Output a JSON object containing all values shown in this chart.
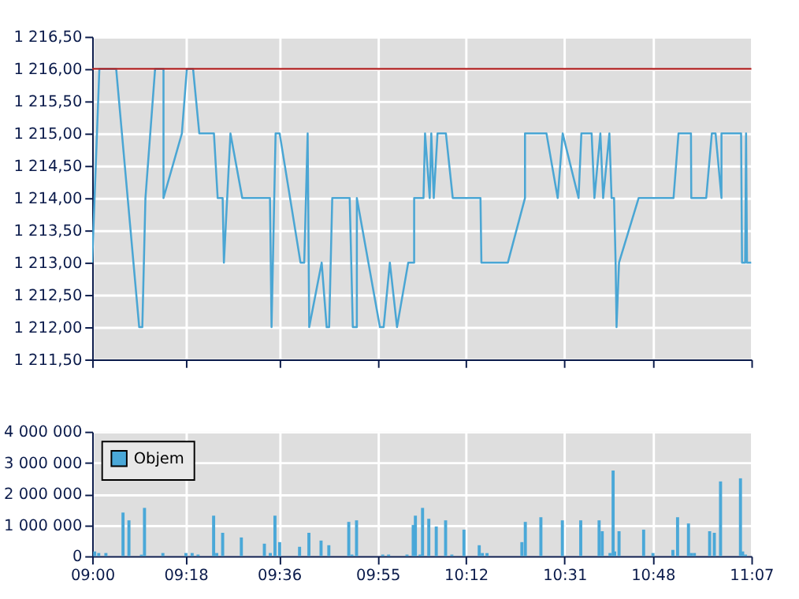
{
  "chart_data": [
    {
      "type": "line",
      "x": [
        9.0,
        9.023,
        9.077,
        9.151,
        9.161,
        9.171,
        9.202,
        9.229,
        9.229,
        9.288,
        9.304,
        9.324,
        9.344,
        9.391,
        9.403,
        9.419,
        9.423,
        9.444,
        9.482,
        9.571,
        9.576,
        9.589,
        9.602,
        9.669,
        9.681,
        9.692,
        9.697,
        9.737,
        9.753,
        9.761,
        9.771,
        9.827,
        9.837,
        9.85,
        9.85,
        9.924,
        9.936,
        9.956,
        9.979,
        10.015,
        10.034,
        10.034,
        10.064,
        10.069,
        10.084,
        10.089,
        10.097,
        10.109,
        10.136,
        10.158,
        10.247,
        10.25,
        10.335,
        10.39,
        10.39,
        10.459,
        10.495,
        10.511,
        10.562,
        10.571,
        10.604,
        10.613,
        10.632,
        10.641,
        10.661,
        10.668,
        10.676,
        10.681,
        10.684,
        10.692,
        10.755,
        10.867,
        10.883,
        10.923,
        10.924,
        10.972,
        10.99,
        11.002,
        11.021,
        11.021,
        11.084,
        11.087,
        11.097,
        11.1,
        11.103,
        11.117
      ],
      "series": [
        {
          "color": "#4aa6d4",
          "values": [
            1213,
            1216,
            1216,
            1212,
            1212,
            1214,
            1216,
            1216,
            1214,
            1215,
            1216,
            1216,
            1215,
            1215,
            1214,
            1214,
            1213,
            1215,
            1214,
            1214,
            1212,
            1215,
            1215,
            1213,
            1213,
            1215,
            1212,
            1213,
            1212,
            1212,
            1214,
            1214,
            1212,
            1212,
            1214,
            1212,
            1212,
            1213,
            1212,
            1213,
            1213,
            1214,
            1214,
            1215,
            1214,
            1215,
            1214,
            1215,
            1215,
            1214,
            1214,
            1213,
            1213,
            1214,
            1215,
            1215,
            1214,
            1215,
            1214,
            1215,
            1215,
            1214,
            1215,
            1214,
            1215,
            1214,
            1214,
            1213,
            1212,
            1213,
            1214,
            1214,
            1215,
            1215,
            1214,
            1214,
            1215,
            1215,
            1214,
            1215,
            1215,
            1213,
            1213,
            1215,
            1213,
            1213
          ]
        }
      ],
      "xlim": [
        9.0,
        11.117
      ],
      "xticks": [
        {
          "value": 9.0,
          "label": null
        },
        {
          "value": 9.3,
          "label": null
        },
        {
          "value": 9.6,
          "label": null
        },
        {
          "value": 9.9167,
          "label": null
        },
        {
          "value": 10.2,
          "label": null
        },
        {
          "value": 10.5167,
          "label": null
        },
        {
          "value": 10.8,
          "label": null
        },
        {
          "value": 11.1167,
          "label": null
        }
      ],
      "ylim": [
        1211.5,
        1216.5
      ],
      "yticks": [
        {
          "value": 1211.5,
          "label": "1 211,50"
        },
        {
          "value": 1212,
          "label": "1 212,00"
        },
        {
          "value": 1212.5,
          "label": "1 212,50"
        },
        {
          "value": 1213,
          "label": "1 213,00"
        },
        {
          "value": 1213.5,
          "label": "1 213,50"
        },
        {
          "value": 1214,
          "label": "1 214,00"
        },
        {
          "value": 1214.5,
          "label": "1 214,50"
        },
        {
          "value": 1215,
          "label": "1 215,00"
        },
        {
          "value": 1215.5,
          "label": "1 215,50"
        },
        {
          "value": 1216,
          "label": "1 216,00"
        },
        {
          "value": 1216.5,
          "label": "1 216,50"
        }
      ],
      "ref_lines": [
        {
          "axis": "y",
          "value": 1216,
          "color": "#b22222"
        }
      ],
      "tick_labels": "y",
      "grid": true
    },
    {
      "type": "bar",
      "x": [
        9.008,
        9.021,
        9.044,
        9.099,
        9.118,
        9.158,
        9.168,
        9.227,
        9.301,
        9.321,
        9.34,
        9.39,
        9.4,
        9.419,
        9.479,
        9.553,
        9.572,
        9.587,
        9.602,
        9.666,
        9.696,
        9.735,
        9.76,
        9.824,
        9.834,
        9.849,
        9.933,
        9.952,
        10.011,
        10.031,
        10.038,
        10.053,
        10.061,
        10.081,
        10.105,
        10.135,
        10.155,
        10.194,
        10.243,
        10.253,
        10.268,
        10.38,
        10.391,
        10.441,
        10.51,
        10.569,
        10.628,
        10.638,
        10.663,
        10.673,
        10.678,
        10.692,
        10.771,
        10.801,
        10.865,
        10.88,
        10.915,
        10.924,
        10.934,
        10.983,
        10.998,
        11.018,
        11.082,
        11.089,
        11.098
      ],
      "series": [
        {
          "name": "Objem",
          "color": "#4aa8d8",
          "values": [
            150000,
            100000,
            100000,
            1400000,
            1150000,
            50000,
            1550000,
            100000,
            100000,
            100000,
            50000,
            1300000,
            100000,
            750000,
            600000,
            400000,
            100000,
            1300000,
            450000,
            300000,
            750000,
            500000,
            350000,
            1100000,
            50000,
            1150000,
            50000,
            50000,
            50000,
            1000000,
            1300000,
            50000,
            1550000,
            1200000,
            950000,
            1150000,
            50000,
            850000,
            350000,
            100000,
            100000,
            450000,
            1100000,
            1250000,
            1150000,
            1150000,
            1150000,
            800000,
            100000,
            2750000,
            150000,
            800000,
            850000,
            100000,
            200000,
            1250000,
            1050000,
            100000,
            100000,
            800000,
            750000,
            2400000,
            2500000,
            150000,
            50000
          ]
        }
      ],
      "xlim": [
        9.0,
        11.117
      ],
      "xticks": [
        {
          "value": 9.0,
          "label": "09:00"
        },
        {
          "value": 9.3,
          "label": "09:18"
        },
        {
          "value": 9.6,
          "label": "09:36"
        },
        {
          "value": 9.9167,
          "label": "09:55"
        },
        {
          "value": 10.2,
          "label": "10:12"
        },
        {
          "value": 10.5167,
          "label": "10:31"
        },
        {
          "value": 10.8,
          "label": "10:48"
        },
        {
          "value": 11.1167,
          "label": "11:07"
        }
      ],
      "ylim": [
        0,
        4000000
      ],
      "yticks": [
        0,
        {
          "value": 1000000,
          "label": "1 000 000"
        },
        {
          "value": 2000000,
          "label": "2 000 000"
        },
        {
          "value": 3000000,
          "label": "3 000 000"
        },
        {
          "value": 4000000,
          "label": "4 000 000"
        }
      ],
      "legend": "top left",
      "grid": true
    }
  ]
}
